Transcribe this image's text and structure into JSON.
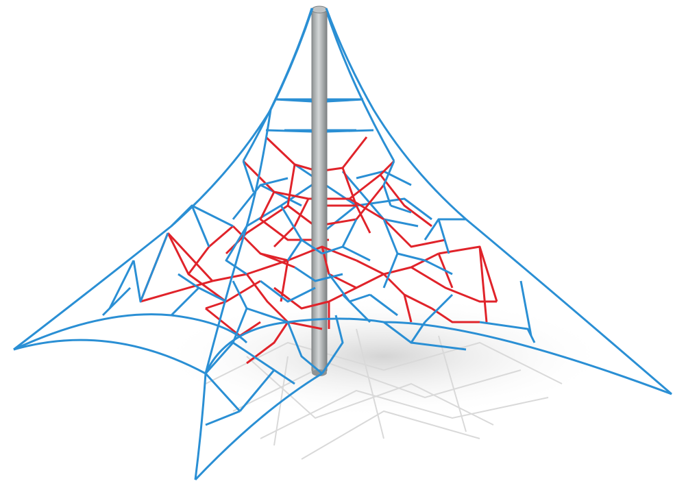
{
  "image": {
    "subject": "rope-climbing-pyramid",
    "colors": {
      "background": "#ffffff",
      "rope_blue": "#2a8fd4",
      "rope_red": "#e0232a",
      "pole_light": "#c9cccd",
      "pole_dark": "#8e9293",
      "shadow": "#d6d6d6"
    }
  }
}
